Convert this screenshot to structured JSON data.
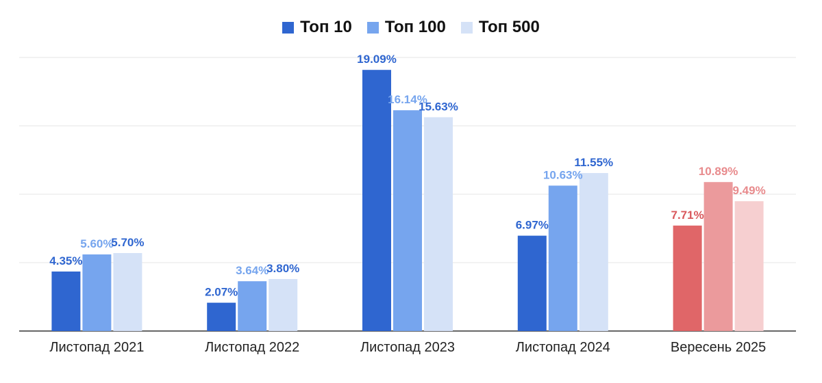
{
  "chart_data": {
    "type": "bar",
    "categories": [
      "Листопад 2021",
      "Листопад 2022",
      "Листопад 2023",
      "Листопад 2024",
      "Вересень 2025"
    ],
    "series": [
      {
        "name": "Топ 10",
        "values": [
          4.35,
          2.07,
          19.09,
          6.97,
          7.71
        ],
        "labels": [
          "4.35%",
          "2.07%",
          "19.09%",
          "6.97%",
          "7.71%"
        ]
      },
      {
        "name": "Топ 100",
        "values": [
          5.6,
          3.64,
          16.14,
          10.63,
          10.89
        ],
        "labels": [
          "5.60%",
          "3.64%",
          "16.14%",
          "10.63%",
          "10.89%"
        ]
      },
      {
        "name": "Топ 500",
        "values": [
          5.7,
          3.8,
          15.63,
          11.55,
          9.49
        ],
        "labels": [
          "5.70%",
          "3.80%",
          "15.63%",
          "11.55%",
          "9.49%"
        ]
      }
    ],
    "ylim": [
      0,
      20
    ],
    "grid": true,
    "legend_position": "top-center",
    "colors": {
      "series": [
        "#2f66d0",
        "#76a5ee",
        "#d5e2f7"
      ],
      "series_labels": [
        "#2f66d0",
        "#76a5ee",
        "#2f66d0"
      ],
      "highlight_category": "Вересень 2025",
      "highlight_bars": [
        "#e06668",
        "#eb9a9c",
        "#f6cfd0"
      ],
      "highlight_labels": [
        "#d9585c",
        "#e88b8d",
        "#e88b8d"
      ],
      "grid": "#e6e6e6",
      "axis": "#333333"
    }
  }
}
